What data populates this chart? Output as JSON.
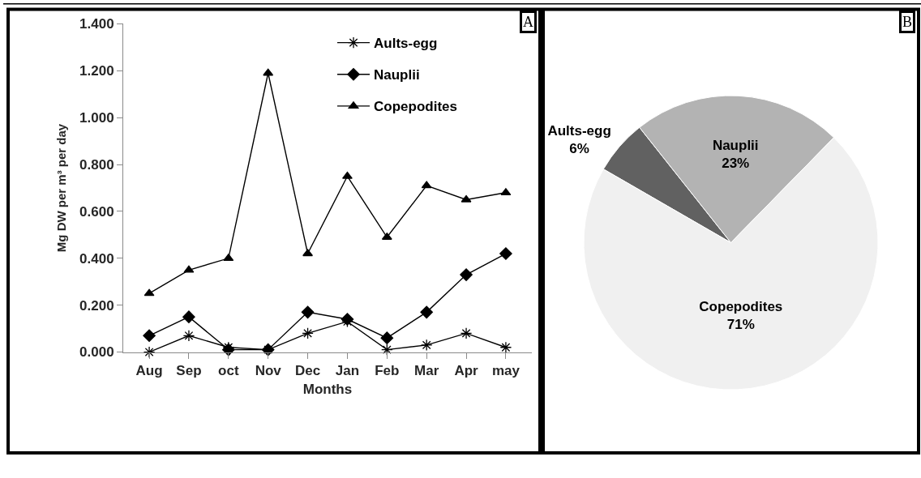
{
  "chart_data": [
    {
      "type": "line",
      "categories": [
        "Aug",
        "Sep",
        "oct",
        "Nov",
        "Dec",
        "Jan",
        "Feb",
        "Mar",
        "Apr",
        "may"
      ],
      "series": [
        {
          "name": "Aults-egg",
          "color": "#000000",
          "marker": "cross",
          "values": [
            0.0,
            0.07,
            0.02,
            0.01,
            0.08,
            0.13,
            0.01,
            0.03,
            0.08,
            0.02
          ]
        },
        {
          "name": "Nauplii",
          "color": "#000000",
          "marker": "diamond",
          "values": [
            0.07,
            0.15,
            0.01,
            0.01,
            0.17,
            0.14,
            0.06,
            0.17,
            0.33,
            0.42
          ]
        },
        {
          "name": "Copepodites",
          "color": "#000000",
          "marker": "triangle",
          "values": [
            0.25,
            0.35,
            0.4,
            1.19,
            0.42,
            0.75,
            0.49,
            0.71,
            0.65,
            0.68
          ]
        }
      ],
      "xlabel": "Months",
      "ylabel": "Mg DW per m³ per day",
      "ylim": [
        0,
        1.4
      ],
      "yticks": [
        {
          "value": 0,
          "label": "0.000"
        },
        {
          "value": 0.2,
          "label": "0.200"
        },
        {
          "value": 0.4,
          "label": "0.400"
        },
        {
          "value": 0.6,
          "label": "0.600"
        },
        {
          "value": 0.8,
          "label": "0.800"
        },
        {
          "value": 1.0,
          "label": "1.000"
        },
        {
          "value": 1.2,
          "label": "1.200"
        },
        {
          "value": 1.4,
          "label": "1.400"
        }
      ],
      "legend": "top right",
      "annotations": [
        "A"
      ]
    },
    {
      "type": "pie",
      "categories": [
        "Aults-egg",
        "Nauplii",
        "Copepodites"
      ],
      "values": [
        6,
        23,
        71
      ],
      "colors": [
        "#616161",
        "#b3b3b3",
        "#f0f0f0"
      ],
      "value_labels": [
        "6%",
        "23%",
        "71%"
      ],
      "annotations": [
        "B"
      ]
    }
  ]
}
